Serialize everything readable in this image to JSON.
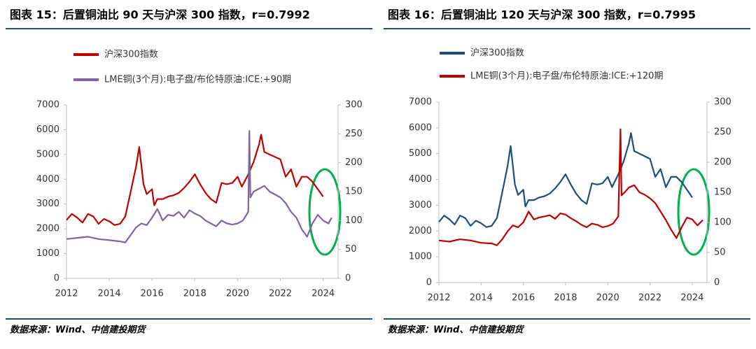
{
  "chart_data": [
    {
      "type": "line",
      "title": "图表 15：后置铜油比 90 天与沪深 300 指数，r=0.7992",
      "source": "数据来源：Wind、中信建投期货",
      "xlim": [
        2012,
        2024.7
      ],
      "xticks": [
        2012,
        2014,
        2016,
        2018,
        2020,
        2022,
        2024
      ],
      "ylim": [
        0,
        7000
      ],
      "yticks": [
        0,
        1000,
        2000,
        3000,
        4000,
        5000,
        6000,
        7000
      ],
      "y2lim": [
        0,
        300
      ],
      "y2ticks": [
        0,
        50,
        100,
        150,
        200,
        250,
        300
      ],
      "series": [
        {
          "name": "沪深300指数",
          "color": "#c00000",
          "x": [
            2012.0,
            2012.25,
            2012.5,
            2012.75,
            2013.0,
            2013.25,
            2013.5,
            2013.75,
            2014.0,
            2014.25,
            2014.5,
            2014.75,
            2015.0,
            2015.25,
            2015.4,
            2015.6,
            2015.75,
            2016.0,
            2016.1,
            2016.25,
            2016.5,
            2016.75,
            2017.0,
            2017.25,
            2017.5,
            2017.75,
            2018.0,
            2018.25,
            2018.5,
            2018.75,
            2019.0,
            2019.25,
            2019.5,
            2019.75,
            2020.0,
            2020.2,
            2020.5,
            2020.75,
            2021.0,
            2021.1,
            2021.25,
            2021.5,
            2021.75,
            2022.0,
            2022.25,
            2022.5,
            2022.75,
            2023.0,
            2023.25,
            2023.5,
            2023.75,
            2024.0
          ],
          "values": [
            2350,
            2600,
            2450,
            2250,
            2600,
            2500,
            2200,
            2400,
            2300,
            2150,
            2200,
            2500,
            3500,
            4500,
            5300,
            3800,
            3400,
            3600,
            2950,
            3200,
            3200,
            3300,
            3350,
            3450,
            3650,
            3900,
            4200,
            3800,
            3450,
            3200,
            3050,
            3850,
            3800,
            3850,
            4100,
            3700,
            4200,
            4700,
            5400,
            5800,
            5100,
            5000,
            4900,
            4800,
            4100,
            4400,
            3700,
            4100,
            4100,
            3900,
            3600,
            3300
          ]
        },
        {
          "name": "LME铜(3个月):电子盘/布伦特原油:ICE:+90期",
          "color": "#8064a2",
          "axis": "y2",
          "x": [
            2012.0,
            2012.5,
            2013.0,
            2013.5,
            2014.0,
            2014.5,
            2014.75,
            2015.0,
            2015.25,
            2015.5,
            2015.75,
            2016.0,
            2016.25,
            2016.5,
            2016.75,
            2017.0,
            2017.25,
            2017.5,
            2017.75,
            2018.0,
            2018.25,
            2018.5,
            2018.75,
            2019.0,
            2019.25,
            2019.5,
            2019.75,
            2020.0,
            2020.25,
            2020.5,
            2020.55,
            2020.6,
            2020.75,
            2021.0,
            2021.25,
            2021.5,
            2021.75,
            2022.0,
            2022.25,
            2022.5,
            2022.75,
            2023.0,
            2023.25,
            2023.5,
            2023.75,
            2024.0,
            2024.25,
            2024.4
          ],
          "values": [
            68,
            70,
            72,
            68,
            66,
            64,
            62,
            75,
            88,
            95,
            92,
            105,
            120,
            100,
            110,
            108,
            115,
            105,
            118,
            112,
            108,
            100,
            95,
            90,
            100,
            95,
            93,
            95,
            100,
            115,
            255,
            140,
            150,
            155,
            160,
            150,
            145,
            140,
            130,
            115,
            105,
            85,
            72,
            95,
            110,
            100,
            95,
            105
          ]
        }
      ]
    },
    {
      "type": "line",
      "title": "图表 16：后置铜油比 120 天与沪深 300 指数，r=0.7995",
      "source": "数据来源：Wind、中信建投期货",
      "xlim": [
        2012,
        2024.7
      ],
      "xticks": [
        2012,
        2014,
        2016,
        2018,
        2020,
        2022,
        2024
      ],
      "ylim": [
        0,
        7000
      ],
      "yticks": [
        0,
        1000,
        2000,
        3000,
        4000,
        5000,
        6000,
        7000
      ],
      "y2lim": [
        0,
        300
      ],
      "y2ticks": [
        0,
        50,
        100,
        150,
        200,
        250,
        300
      ],
      "series": [
        {
          "name": "沪深300指数",
          "color": "#1f4e79",
          "x": [
            2012.0,
            2012.25,
            2012.5,
            2012.75,
            2013.0,
            2013.25,
            2013.5,
            2013.75,
            2014.0,
            2014.25,
            2014.5,
            2014.75,
            2015.0,
            2015.25,
            2015.4,
            2015.6,
            2015.75,
            2016.0,
            2016.1,
            2016.25,
            2016.5,
            2016.75,
            2017.0,
            2017.25,
            2017.5,
            2017.75,
            2018.0,
            2018.25,
            2018.5,
            2018.75,
            2019.0,
            2019.25,
            2019.5,
            2019.75,
            2020.0,
            2020.2,
            2020.5,
            2020.75,
            2021.0,
            2021.1,
            2021.25,
            2021.5,
            2021.75,
            2022.0,
            2022.25,
            2022.5,
            2022.75,
            2023.0,
            2023.25,
            2023.5,
            2023.75,
            2024.0
          ],
          "values": [
            2350,
            2600,
            2450,
            2250,
            2600,
            2500,
            2200,
            2400,
            2300,
            2150,
            2200,
            2500,
            3500,
            4500,
            5300,
            3800,
            3400,
            3600,
            2950,
            3200,
            3200,
            3300,
            3350,
            3450,
            3650,
            3900,
            4200,
            3800,
            3450,
            3200,
            3050,
            3850,
            3800,
            3850,
            4100,
            3700,
            4200,
            4700,
            5400,
            5800,
            5100,
            5000,
            4900,
            4800,
            4100,
            4400,
            3700,
            4100,
            4100,
            3900,
            3600,
            3300
          ]
        },
        {
          "name": "LME铜(3个月):电子盘/布伦特原油:ICE:+120期",
          "color": "#c00000",
          "axis": "y2",
          "x": [
            2012.0,
            2012.5,
            2013.0,
            2013.5,
            2014.0,
            2014.5,
            2014.75,
            2015.0,
            2015.25,
            2015.5,
            2015.75,
            2016.0,
            2016.25,
            2016.5,
            2016.75,
            2017.0,
            2017.25,
            2017.5,
            2017.75,
            2018.0,
            2018.25,
            2018.5,
            2018.75,
            2019.0,
            2019.25,
            2019.5,
            2019.75,
            2020.0,
            2020.25,
            2020.5,
            2020.6,
            2020.65,
            2020.8,
            2021.0,
            2021.25,
            2021.5,
            2021.75,
            2022.0,
            2022.25,
            2022.5,
            2022.75,
            2023.0,
            2023.25,
            2023.5,
            2023.75,
            2024.0,
            2024.25,
            2024.5
          ],
          "values": [
            70,
            68,
            72,
            70,
            66,
            65,
            62,
            72,
            85,
            95,
            92,
            100,
            118,
            105,
            108,
            110,
            112,
            106,
            115,
            113,
            107,
            102,
            96,
            92,
            98,
            96,
            92,
            94,
            98,
            110,
            255,
            145,
            150,
            158,
            162,
            150,
            146,
            140,
            132,
            118,
            104,
            88,
            74,
            92,
            108,
            105,
            95,
            104
          ]
        }
      ]
    }
  ]
}
